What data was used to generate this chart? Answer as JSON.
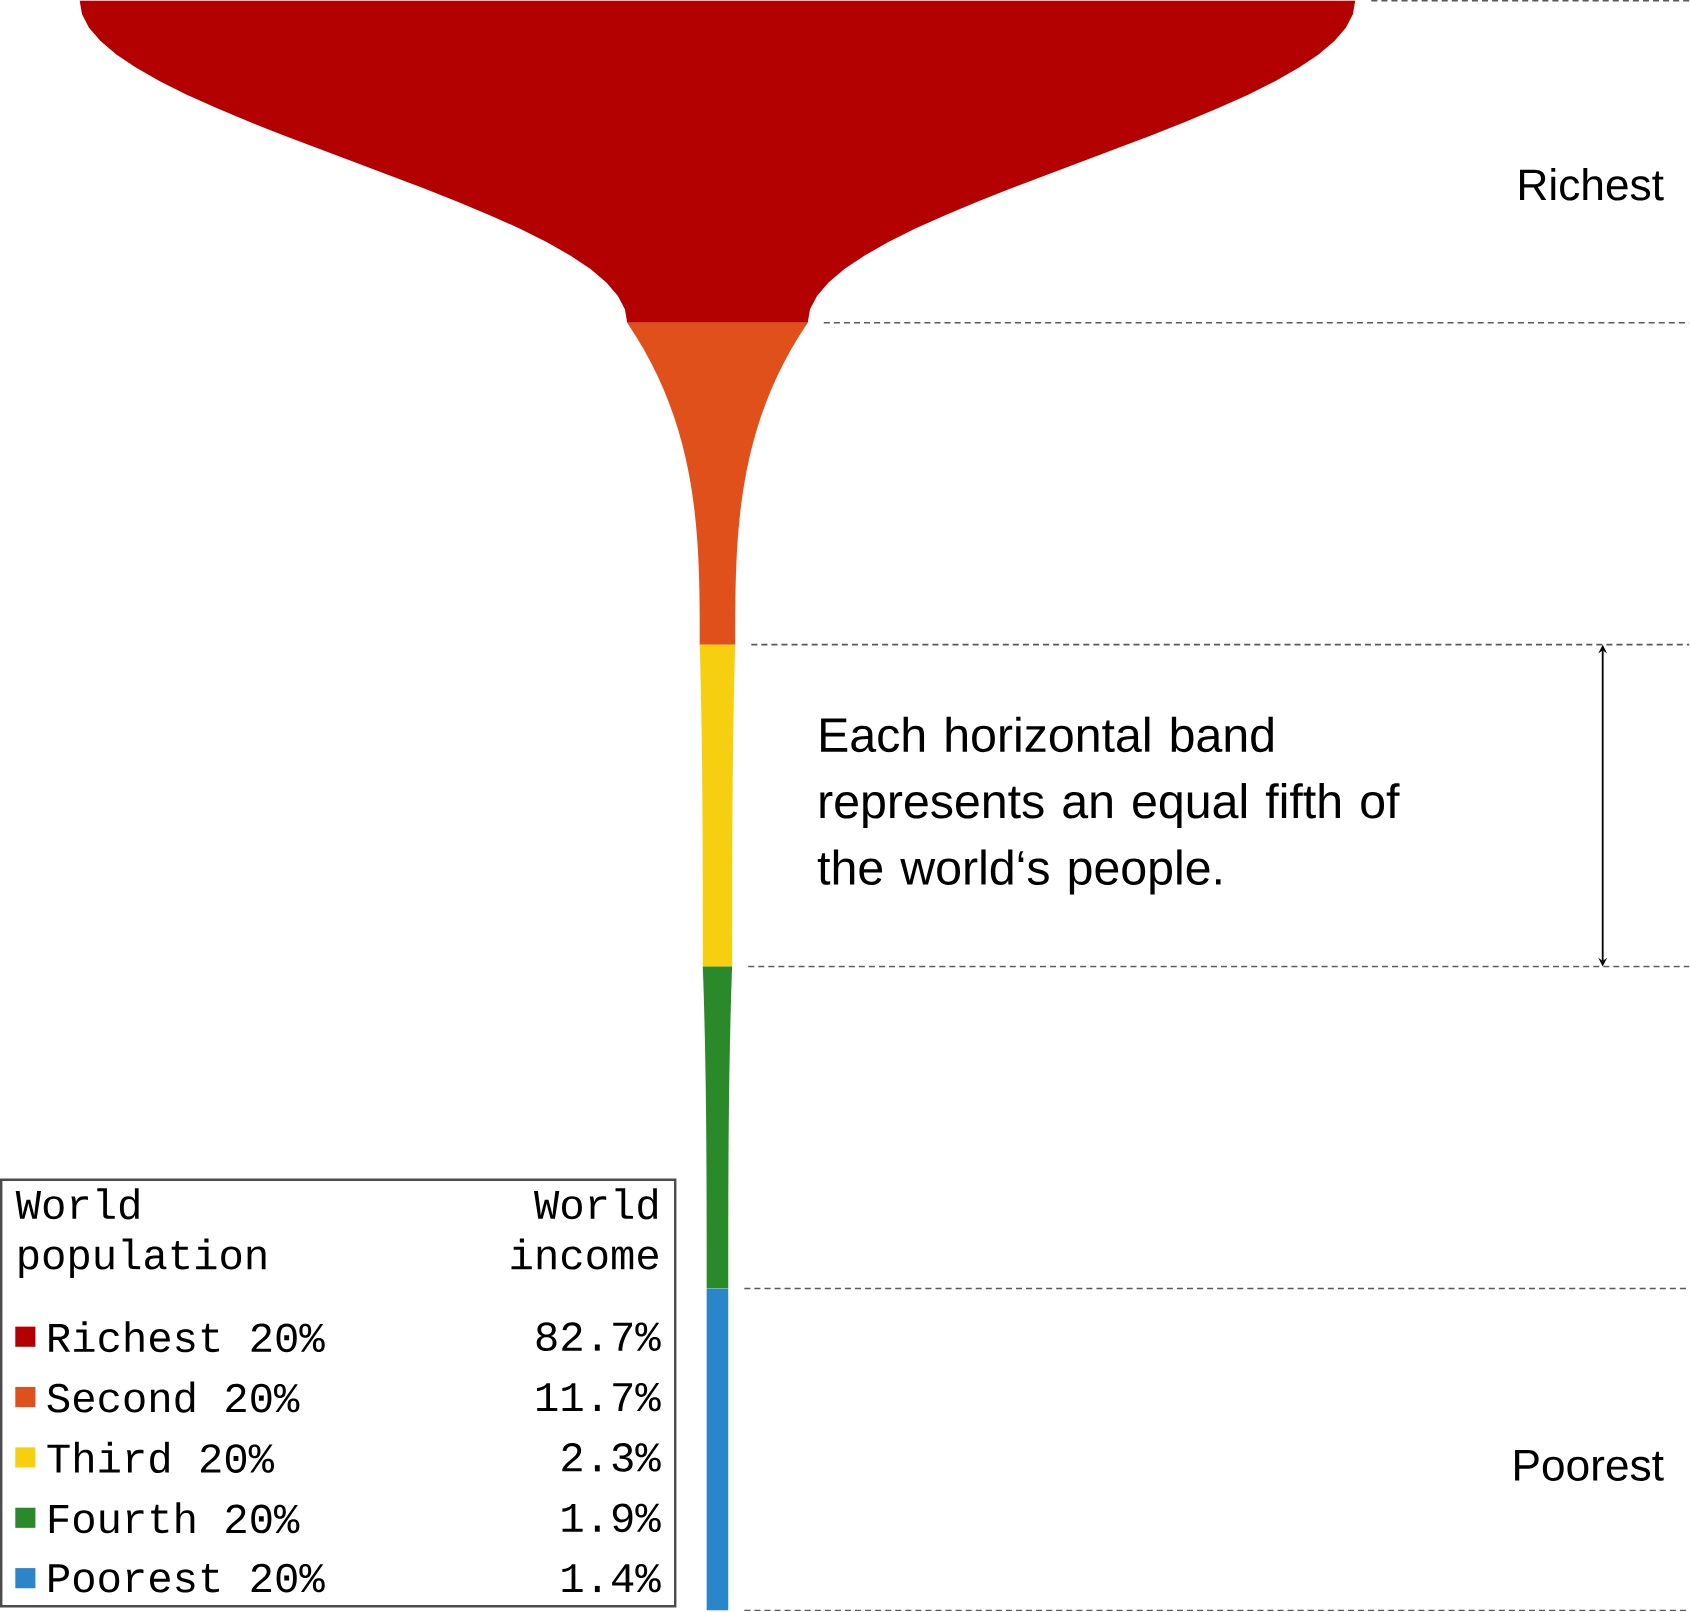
{
  "chart_data": {
    "type": "other",
    "ylabel": "World population",
    "xlabel": "World income",
    "categories": [
      "Richest 20%",
      "Second 20%",
      "Third 20%",
      "Fourth 20%",
      "Poorest 20%"
    ],
    "values": [
      82.7,
      11.7,
      2.3,
      1.9,
      1.4
    ],
    "value_labels": [
      "82.7%",
      "11.7%",
      "2.3%",
      "1.9%",
      "1.4%"
    ],
    "colors": [
      "#b30000",
      "#e0501a",
      "#f5cf10",
      "#2a8a2a",
      "#2b86c9"
    ],
    "annotations": [
      "Richest",
      "Poorest",
      "Each horizontal band represents an equal fifth of the world‘s people."
    ]
  }
}
